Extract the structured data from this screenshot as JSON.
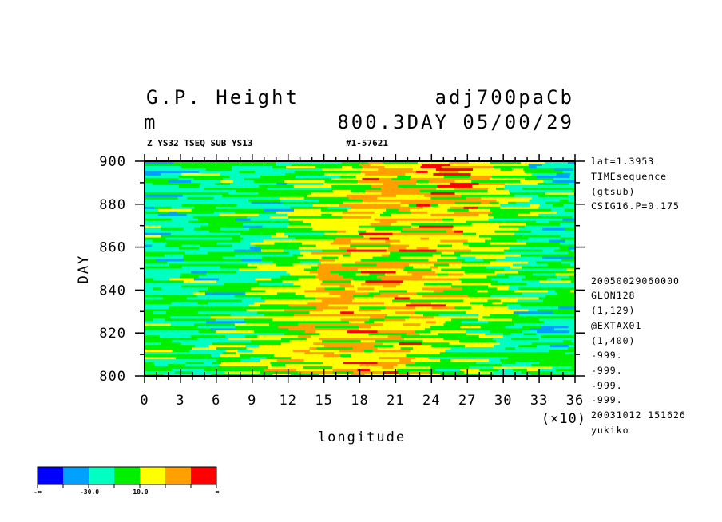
{
  "header": {
    "title_left": "G.P. Height",
    "title_right": "adj700paCb",
    "units": "m",
    "time_label": "800.3DAY 05/00/29",
    "subtitle_left": "Z YS32 TSEQ SUB YS13",
    "subtitle_right": "#1-57621"
  },
  "side_info": {
    "top": [
      "lat=1.3953",
      "TIMEsequence",
      "(gtsub)",
      "CSIG16.P=0.175"
    ],
    "bottom": [
      "20050029060000",
      "GLON128",
      "(1,129)",
      "@EXTAX01",
      "(1,400)",
      "-999.",
      "-999.",
      "-999.",
      "-999.",
      "20031012 151626",
      "yukiko"
    ]
  },
  "colorbar": {
    "colors": [
      "#0000ff",
      "#00a0ff",
      "#00ffc0",
      "#00f000",
      "#ffff00",
      "#ffa000",
      "#ff0000"
    ],
    "labels": [
      "-∞",
      "-30.0",
      "10.0",
      "∞"
    ]
  },
  "chart_data": {
    "type": "heatmap",
    "title": "G.P. Height",
    "xlabel": "longitude",
    "x_multiplier_label": "(×10)",
    "ylabel": "DAY",
    "xlim": [
      0,
      36
    ],
    "ylim": [
      800,
      900
    ],
    "x_ticks": [
      "0",
      "3",
      "6",
      "9",
      "12",
      "15",
      "18",
      "21",
      "24",
      "27",
      "30",
      "33",
      "36"
    ],
    "y_ticks": [
      "800",
      "820",
      "840",
      "860",
      "880",
      "900"
    ],
    "color_levels": [
      "-∞",
      "-30.0",
      "10.0",
      "∞"
    ],
    "band_structure": [
      {
        "x_range": [
          0,
          13
        ],
        "dominant": "green/cyan with blue streaks"
      },
      {
        "x_range": [
          14,
          29
        ],
        "dominant": "yellow/orange with red streaks, shifted eastward with time"
      },
      {
        "x_range": [
          30,
          36
        ],
        "dominant": "green/cyan with blue patches near 900"
      }
    ]
  }
}
